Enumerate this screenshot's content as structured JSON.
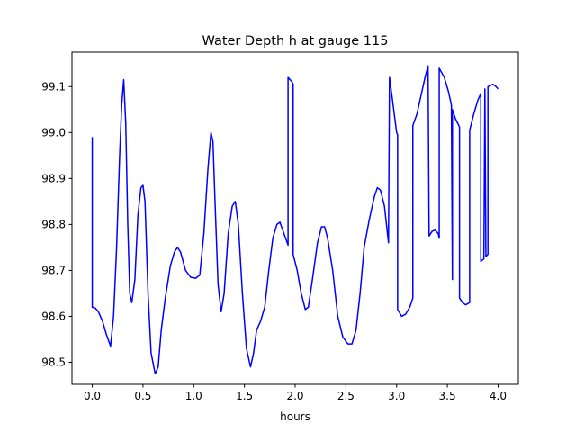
{
  "chart_data": {
    "type": "line",
    "title": "Water Depth h at gauge 115",
    "xlabel": "hours",
    "ylabel": "",
    "xlim": [
      -0.2,
      4.2
    ],
    "ylim": [
      98.452,
      99.175
    ],
    "xticks": [
      0.0,
      0.5,
      1.0,
      1.5,
      2.0,
      2.5,
      3.0,
      3.5,
      4.0
    ],
    "xtick_labels": [
      "0.0",
      "0.5",
      "1.0",
      "1.5",
      "2.0",
      "2.5",
      "3.0",
      "3.5",
      "4.0"
    ],
    "yticks": [
      98.5,
      98.6,
      98.7,
      98.8,
      98.9,
      99.0,
      99.1
    ],
    "ytick_labels": [
      "98.5",
      "98.6",
      "98.7",
      "98.8",
      "98.9",
      "99.0",
      "99.1"
    ],
    "grid": false,
    "series": [
      {
        "color": "#0000ff",
        "points": [
          [
            0.0,
            98.99
          ],
          [
            0.0,
            98.62
          ],
          [
            0.03,
            98.618
          ],
          [
            0.06,
            98.61
          ],
          [
            0.1,
            98.59
          ],
          [
            0.14,
            98.56
          ],
          [
            0.18,
            98.535
          ],
          [
            0.21,
            98.6
          ],
          [
            0.24,
            98.75
          ],
          [
            0.27,
            98.95
          ],
          [
            0.29,
            99.06
          ],
          [
            0.31,
            99.115
          ],
          [
            0.33,
            99.02
          ],
          [
            0.35,
            98.8
          ],
          [
            0.37,
            98.65
          ],
          [
            0.39,
            98.63
          ],
          [
            0.42,
            98.68
          ],
          [
            0.45,
            98.82
          ],
          [
            0.48,
            98.88
          ],
          [
            0.5,
            98.885
          ],
          [
            0.52,
            98.85
          ],
          [
            0.55,
            98.65
          ],
          [
            0.58,
            98.52
          ],
          [
            0.62,
            98.475
          ],
          [
            0.65,
            98.49
          ],
          [
            0.68,
            98.57
          ],
          [
            0.72,
            98.64
          ],
          [
            0.77,
            98.71
          ],
          [
            0.81,
            98.74
          ],
          [
            0.84,
            98.75
          ],
          [
            0.87,
            98.74
          ],
          [
            0.92,
            98.7
          ],
          [
            0.97,
            98.685
          ],
          [
            1.02,
            98.683
          ],
          [
            1.06,
            98.69
          ],
          [
            1.1,
            98.78
          ],
          [
            1.14,
            98.92
          ],
          [
            1.17,
            99.0
          ],
          [
            1.19,
            98.98
          ],
          [
            1.21,
            98.85
          ],
          [
            1.24,
            98.67
          ],
          [
            1.27,
            98.61
          ],
          [
            1.3,
            98.65
          ],
          [
            1.34,
            98.78
          ],
          [
            1.38,
            98.84
          ],
          [
            1.41,
            98.85
          ],
          [
            1.44,
            98.8
          ],
          [
            1.48,
            98.65
          ],
          [
            1.52,
            98.53
          ],
          [
            1.56,
            98.49
          ],
          [
            1.59,
            98.52
          ],
          [
            1.62,
            98.57
          ],
          [
            1.66,
            98.59
          ],
          [
            1.7,
            98.62
          ],
          [
            1.74,
            98.7
          ],
          [
            1.78,
            98.77
          ],
          [
            1.82,
            98.8
          ],
          [
            1.85,
            98.805
          ],
          [
            1.89,
            98.78
          ],
          [
            1.93,
            98.755
          ],
          [
            1.93,
            99.12
          ],
          [
            1.97,
            99.11
          ],
          [
            1.98,
            99.105
          ],
          [
            1.98,
            98.735
          ],
          [
            2.02,
            98.7
          ],
          [
            2.06,
            98.65
          ],
          [
            2.1,
            98.615
          ],
          [
            2.13,
            98.62
          ],
          [
            2.17,
            98.68
          ],
          [
            2.22,
            98.76
          ],
          [
            2.26,
            98.795
          ],
          [
            2.29,
            98.795
          ],
          [
            2.32,
            98.77
          ],
          [
            2.37,
            98.7
          ],
          [
            2.42,
            98.6
          ],
          [
            2.47,
            98.555
          ],
          [
            2.52,
            98.54
          ],
          [
            2.56,
            98.54
          ],
          [
            2.6,
            98.57
          ],
          [
            2.64,
            98.65
          ],
          [
            2.68,
            98.75
          ],
          [
            2.73,
            98.81
          ],
          [
            2.78,
            98.86
          ],
          [
            2.81,
            98.88
          ],
          [
            2.84,
            98.875
          ],
          [
            2.88,
            98.84
          ],
          [
            2.92,
            98.76
          ],
          [
            2.93,
            99.12
          ],
          [
            2.96,
            99.07
          ],
          [
            3.0,
            99.0
          ],
          [
            3.01,
            98.995
          ],
          [
            3.01,
            98.615
          ],
          [
            3.05,
            98.6
          ],
          [
            3.09,
            98.605
          ],
          [
            3.13,
            98.62
          ],
          [
            3.16,
            98.64
          ],
          [
            3.16,
            99.015
          ],
          [
            3.2,
            99.04
          ],
          [
            3.24,
            99.08
          ],
          [
            3.28,
            99.12
          ],
          [
            3.31,
            99.145
          ],
          [
            3.32,
            98.775
          ],
          [
            3.35,
            98.785
          ],
          [
            3.38,
            98.788
          ],
          [
            3.41,
            98.78
          ],
          [
            3.42,
            98.77
          ],
          [
            3.42,
            99.14
          ],
          [
            3.47,
            99.12
          ],
          [
            3.51,
            99.09
          ],
          [
            3.54,
            99.06
          ],
          [
            3.55,
            98.68
          ],
          [
            3.55,
            99.05
          ],
          [
            3.58,
            99.03
          ],
          [
            3.62,
            99.012
          ],
          [
            3.62,
            98.64
          ],
          [
            3.65,
            98.63
          ],
          [
            3.68,
            98.625
          ],
          [
            3.72,
            98.63
          ],
          [
            3.72,
            99.005
          ],
          [
            3.76,
            99.04
          ],
          [
            3.8,
            99.07
          ],
          [
            3.83,
            99.085
          ],
          [
            3.83,
            98.72
          ],
          [
            3.86,
            98.725
          ],
          [
            3.87,
            99.095
          ],
          [
            3.88,
            98.73
          ],
          [
            3.9,
            98.735
          ],
          [
            3.9,
            99.1
          ],
          [
            3.95,
            99.105
          ],
          [
            3.98,
            99.1
          ],
          [
            4.0,
            99.095
          ]
        ]
      }
    ]
  }
}
